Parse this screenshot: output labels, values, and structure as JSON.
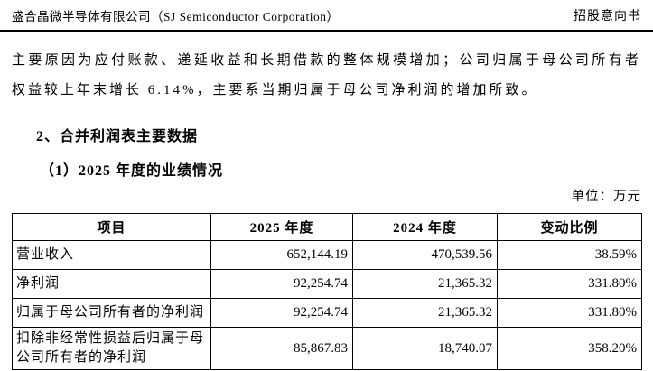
{
  "header": {
    "company": "盛合晶微半导体有限公司（SJ Semiconductor Corporation）",
    "doc_type": "招股意向书"
  },
  "body": {
    "paragraph": "主要原因为应付账款、递延收益和长期借款的整体规模增加；公司归属于母公司所有者权益较上年末增长 6.14%，主要系当期归属于母公司净利润的增加所致。",
    "section_heading": "2、合并利润表主要数据",
    "subsection_heading": "（1）2025 年度的业绩情况",
    "unit_label": "单位：万元"
  },
  "table": {
    "headers": [
      "项目",
      "2025 年度",
      "2024 年度",
      "变动比例"
    ],
    "rows": [
      {
        "item": "营业收入",
        "y2025": "652,144.19",
        "y2024": "470,539.56",
        "change": "38.59%"
      },
      {
        "item": "净利润",
        "y2025": "92,254.74",
        "y2024": "21,365.32",
        "change": "331.80%"
      },
      {
        "item": "归属于母公司所有者的净利润",
        "y2025": "92,254.74",
        "y2024": "21,365.32",
        "change": "331.80%"
      },
      {
        "item": "扣除非经常性损益后归属于母公司所有者的净利润",
        "y2025": "85,867.83",
        "y2024": "18,740.07",
        "change": "358.20%"
      }
    ]
  }
}
